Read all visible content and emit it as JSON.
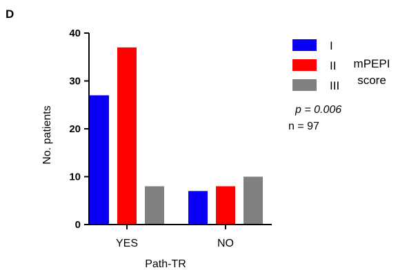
{
  "panel_label": "D",
  "legend_title_line1": "mPEPI",
  "legend_title_line2": "score",
  "annotation_p": "p = 0.006",
  "annotation_n": "n = 97",
  "chart_data": {
    "type": "bar",
    "categories": [
      "YES",
      "NO"
    ],
    "series": [
      {
        "name": "I",
        "color": "#0a00f5",
        "values": [
          27,
          7
        ]
      },
      {
        "name": "II",
        "color": "#ff0000",
        "values": [
          37,
          8
        ]
      },
      {
        "name": "III",
        "color": "#808080",
        "values": [
          8,
          10
        ]
      }
    ],
    "xlabel": "Path-TR",
    "ylabel": "No. patients",
    "ylim": [
      0,
      40
    ],
    "yticks": [
      0,
      10,
      20,
      30,
      40
    ],
    "grid": false,
    "legend_position": "right"
  }
}
